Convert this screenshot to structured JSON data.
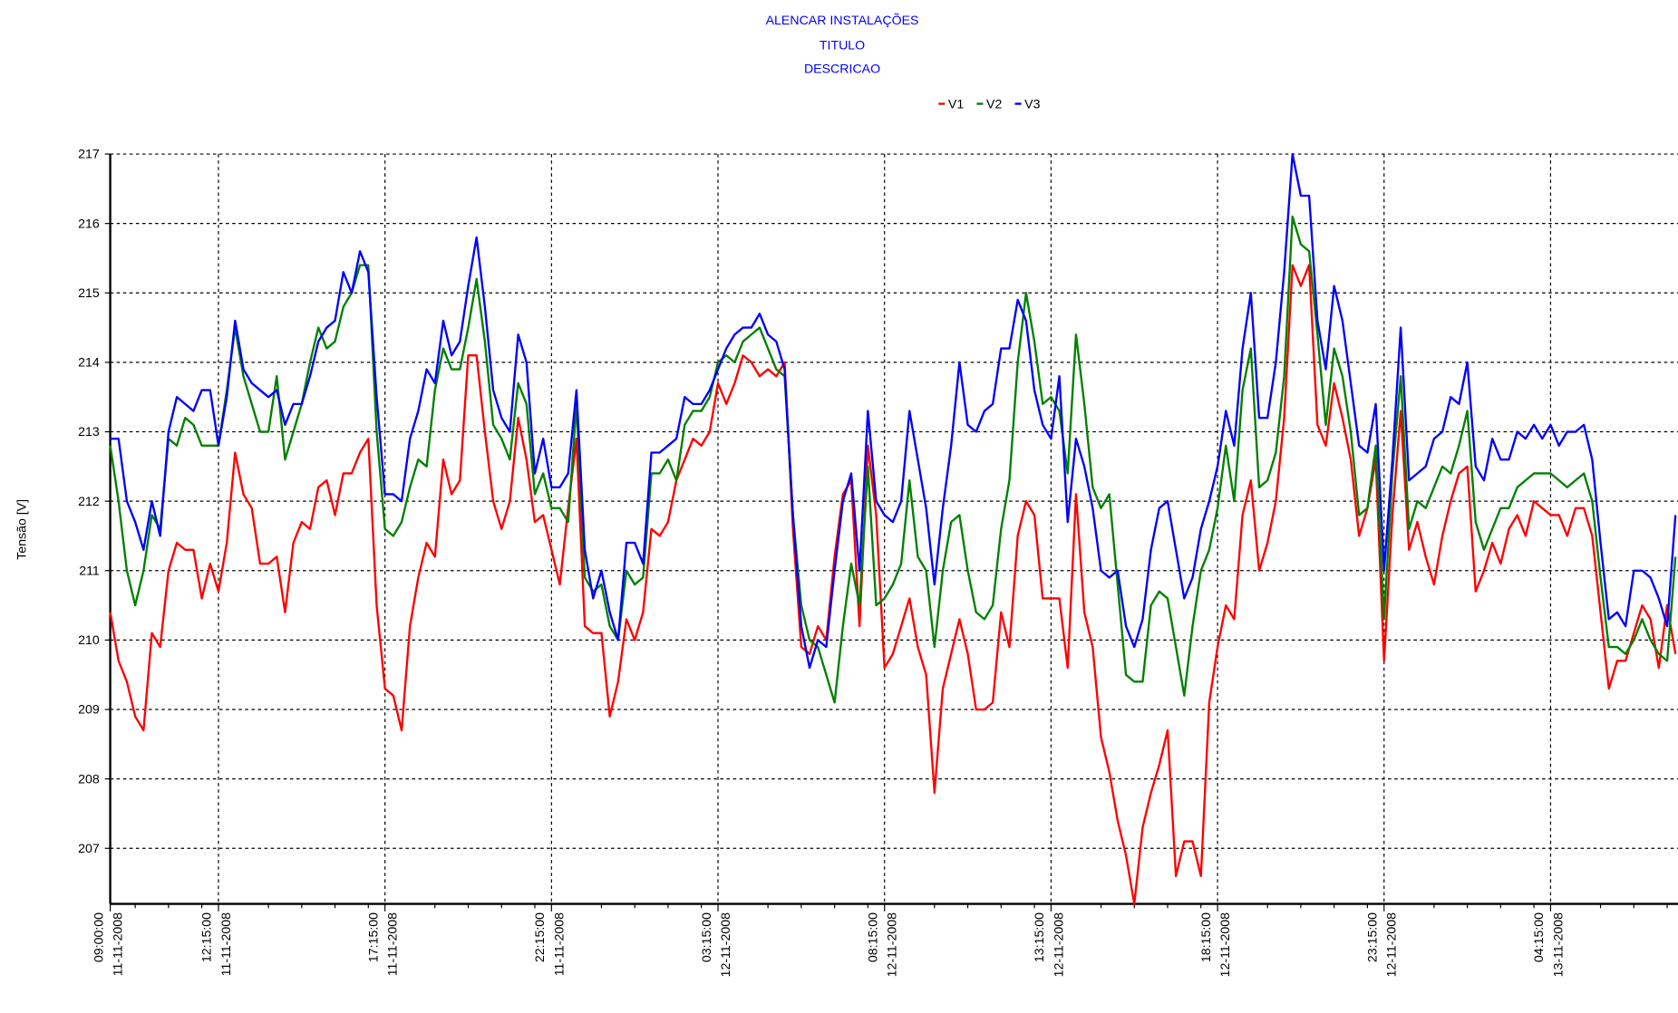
{
  "chart_data": {
    "type": "line",
    "title": "ALENCAR INSTALAÇÕES",
    "subtitle": "TITULO",
    "description": "DESCRICAO",
    "ylabel": "Tensão [V]",
    "ylim": [
      206.2,
      217
    ],
    "yticks": [
      207,
      208,
      209,
      210,
      211,
      212,
      213,
      214,
      215,
      216,
      217
    ],
    "grid": true,
    "legend": "top",
    "categories": [
      "09:00:00 11-11-2008",
      null,
      null,
      null,
      null,
      null,
      null,
      null,
      null,
      null,
      null,
      null,
      null,
      "12:15:00 11-11-2008",
      null,
      null,
      null,
      null,
      null,
      null,
      null,
      null,
      null,
      null,
      null,
      null,
      null,
      null,
      null,
      null,
      null,
      null,
      null,
      "17:15:00 11-11-2008",
      null,
      null,
      null,
      null,
      null,
      null,
      null,
      null,
      null,
      null,
      null,
      null,
      null,
      null,
      null,
      null,
      null,
      null,
      null,
      "22:15:00 11-11-2008",
      null,
      null,
      null,
      null,
      null,
      null,
      null,
      null,
      null,
      null,
      null,
      null,
      null,
      null,
      null,
      null,
      null,
      null,
      null,
      "03:15:00 12-11-2008",
      null,
      null,
      null,
      null,
      null,
      null,
      null,
      null,
      null,
      null,
      null,
      null,
      null,
      null,
      null,
      null,
      null,
      null,
      null,
      "08:15:00 12-11-2008",
      null,
      null,
      null,
      null,
      null,
      null,
      null,
      null,
      null,
      null,
      null,
      null,
      null,
      null,
      null,
      null,
      null,
      null,
      null,
      "13:15:00 12-11-2008",
      null,
      null,
      null,
      null,
      null,
      null,
      null,
      null,
      null,
      null,
      null,
      null,
      null,
      null,
      null,
      null,
      null,
      null,
      null,
      "18:15:00 12-11-2008",
      null,
      null,
      null,
      null,
      null,
      null,
      null,
      null,
      null,
      null,
      null,
      null,
      null,
      null,
      null,
      null,
      null,
      null,
      null,
      "23:15:00 12-11-2008",
      null,
      null,
      null,
      null,
      null,
      null,
      null,
      null,
      null,
      null,
      null,
      null,
      null,
      null,
      null,
      null,
      null,
      null,
      null,
      "04:15:00 13-11-2008",
      null,
      null,
      null,
      null,
      null,
      null,
      null,
      null,
      null,
      null,
      null,
      null,
      null,
      null,
      null
    ],
    "series": [
      {
        "name": "V1",
        "color": "#ff0000",
        "values": [
          210.4,
          209.7,
          209.4,
          208.9,
          208.7,
          210.1,
          209.9,
          211.0,
          211.4,
          211.3,
          211.3,
          210.6,
          211.1,
          210.7,
          211.4,
          212.7,
          212.1,
          211.9,
          211.1,
          211.1,
          211.2,
          210.4,
          211.4,
          211.7,
          211.6,
          212.2,
          212.3,
          211.8,
          212.4,
          212.4,
          212.7,
          212.9,
          210.5,
          209.3,
          209.2,
          208.7,
          210.2,
          210.9,
          211.4,
          211.2,
          212.6,
          212.1,
          212.3,
          214.1,
          214.1,
          213.0,
          212.0,
          211.6,
          212.0,
          213.2,
          212.6,
          211.7,
          211.8,
          211.3,
          210.8,
          211.9,
          212.9,
          210.2,
          210.1,
          210.1,
          208.9,
          209.4,
          210.3,
          210.0,
          210.4,
          211.6,
          211.5,
          211.7,
          212.3,
          212.6,
          212.9,
          212.8,
          213.0,
          213.7,
          213.4,
          213.7,
          214.1,
          214.0,
          213.8,
          213.9,
          213.8,
          214.0,
          211.6,
          209.9,
          209.8,
          210.2,
          210.0,
          211.2,
          212.1,
          212.3,
          210.2,
          212.8,
          211.8,
          209.6,
          209.8,
          210.2,
          210.6,
          209.9,
          209.5,
          207.8,
          209.3,
          209.8,
          210.3,
          209.8,
          209.0,
          209.0,
          209.1,
          210.4,
          209.9,
          211.5,
          212.0,
          211.8,
          210.6,
          210.6,
          210.6,
          209.6,
          212.1,
          210.4,
          209.9,
          208.6,
          208.1,
          207.4,
          206.9,
          206.2,
          207.3,
          207.8,
          208.2,
          208.7,
          206.6,
          207.1,
          207.1,
          206.6,
          209.1,
          209.9,
          210.5,
          210.3,
          211.8,
          212.3,
          211.0,
          211.4,
          212.0,
          213.2,
          215.4,
          215.1,
          215.4,
          213.1,
          212.8,
          213.7,
          213.2,
          212.6,
          211.5,
          211.9,
          212.6,
          209.7,
          211.8,
          213.3,
          211.3,
          211.7,
          211.2,
          210.8,
          211.5,
          212.0,
          212.4,
          212.5,
          210.7,
          211.0,
          211.4,
          211.1,
          211.6,
          211.8,
          211.5,
          212.0,
          211.9,
          211.8,
          211.8,
          211.5,
          211.9,
          211.9,
          211.5,
          210.4,
          209.3,
          209.7,
          209.7,
          210.1,
          210.5,
          210.3,
          209.6,
          210.5,
          209.8
        ]
      },
      {
        "name": "V2",
        "color": "#008000",
        "values": [
          212.8,
          212.0,
          211.0,
          210.5,
          211.0,
          211.8,
          211.6,
          212.9,
          212.8,
          213.2,
          213.1,
          212.8,
          212.8,
          212.8,
          213.6,
          214.5,
          213.8,
          213.4,
          213.0,
          213.0,
          213.8,
          212.6,
          213.0,
          213.4,
          214.0,
          214.5,
          214.2,
          214.3,
          214.8,
          215.0,
          215.4,
          215.4,
          213.0,
          211.6,
          211.5,
          211.7,
          212.2,
          212.6,
          212.5,
          213.6,
          214.2,
          213.9,
          213.9,
          214.5,
          215.2,
          214.3,
          213.1,
          212.9,
          212.6,
          213.7,
          213.4,
          212.1,
          212.4,
          211.9,
          211.9,
          211.7,
          213.4,
          210.9,
          210.7,
          210.8,
          210.2,
          210.0,
          211.0,
          210.8,
          210.9,
          212.4,
          212.4,
          212.6,
          212.3,
          213.1,
          213.3,
          213.3,
          213.5,
          214.0,
          214.1,
          214.0,
          214.3,
          214.4,
          214.5,
          214.2,
          213.9,
          213.8,
          211.8,
          210.5,
          210.0,
          209.9,
          209.5,
          209.1,
          210.2,
          211.1,
          210.5,
          212.5,
          210.5,
          210.6,
          210.8,
          211.1,
          212.3,
          211.2,
          211.0,
          209.9,
          211.0,
          211.7,
          211.8,
          211.0,
          210.4,
          210.3,
          210.5,
          211.6,
          212.3,
          214.0,
          215.0,
          214.3,
          213.4,
          213.5,
          213.3,
          212.4,
          214.4,
          213.4,
          212.2,
          211.9,
          212.1,
          210.8,
          209.5,
          209.4,
          209.4,
          210.5,
          210.7,
          210.6,
          209.9,
          209.2,
          210.2,
          211.0,
          211.3,
          211.9,
          212.8,
          212.0,
          213.6,
          214.2,
          212.2,
          212.3,
          212.7,
          213.8,
          216.1,
          215.7,
          215.6,
          214.4,
          213.1,
          214.2,
          213.8,
          213.0,
          211.8,
          211.9,
          212.8,
          210.3,
          212.4,
          213.8,
          211.6,
          212.0,
          211.9,
          212.2,
          212.5,
          212.4,
          212.8,
          213.3,
          211.7,
          211.3,
          211.6,
          211.9,
          211.9,
          212.2,
          212.3,
          212.4,
          212.4,
          212.4,
          212.3,
          212.2,
          212.3,
          212.4,
          212.0,
          210.9,
          209.9,
          209.9,
          209.8,
          210.0,
          210.3,
          210.0,
          209.8,
          209.7,
          211.2
        ]
      },
      {
        "name": "V3",
        "color": "#0000ff",
        "values": [
          212.9,
          212.9,
          212.0,
          211.7,
          211.3,
          212.0,
          211.5,
          213.0,
          213.5,
          213.4,
          213.3,
          213.6,
          213.6,
          212.8,
          213.5,
          214.6,
          213.9,
          213.7,
          213.6,
          213.5,
          213.6,
          213.1,
          213.4,
          213.4,
          213.8,
          214.3,
          214.5,
          214.6,
          215.3,
          215.0,
          215.6,
          215.3,
          213.5,
          212.1,
          212.1,
          212.0,
          212.9,
          213.3,
          213.9,
          213.7,
          214.6,
          214.1,
          214.3,
          215.1,
          215.8,
          214.8,
          213.6,
          213.2,
          213.0,
          214.4,
          214.0,
          212.4,
          212.9,
          212.2,
          212.2,
          212.4,
          213.6,
          211.3,
          210.6,
          211.0,
          210.4,
          210.0,
          211.4,
          211.4,
          211.1,
          212.7,
          212.7,
          212.8,
          212.9,
          213.5,
          213.4,
          213.4,
          213.6,
          213.9,
          214.2,
          214.4,
          214.5,
          214.5,
          214.7,
          214.4,
          214.3,
          213.9,
          211.8,
          210.2,
          209.6,
          210.0,
          209.9,
          211.0,
          212.0,
          212.4,
          211.0,
          213.3,
          212.0,
          211.8,
          211.7,
          212.0,
          213.3,
          212.6,
          211.9,
          210.8,
          211.9,
          212.8,
          214.0,
          213.1,
          213.0,
          213.3,
          213.4,
          214.2,
          214.2,
          214.9,
          214.6,
          213.6,
          213.1,
          212.9,
          213.8,
          211.7,
          212.9,
          212.5,
          211.9,
          211.0,
          210.9,
          211.0,
          210.2,
          209.9,
          210.3,
          211.3,
          211.9,
          212.0,
          211.3,
          210.6,
          210.9,
          211.6,
          212.0,
          212.5,
          213.3,
          212.8,
          214.2,
          215.0,
          213.2,
          213.2,
          214.0,
          215.3,
          217.0,
          216.4,
          216.4,
          214.6,
          213.9,
          215.1,
          214.6,
          213.7,
          212.8,
          212.7,
          213.4,
          211.0,
          212.6,
          214.5,
          212.3,
          212.4,
          212.5,
          212.9,
          213.0,
          213.5,
          213.4,
          214.0,
          212.5,
          212.3,
          212.9,
          212.6,
          212.6,
          213.0,
          212.9,
          213.1,
          212.9,
          213.1,
          212.8,
          213.0,
          213.0,
          213.1,
          212.6,
          211.4,
          210.3,
          210.4,
          210.2,
          211.0,
          211.0,
          210.9,
          210.6,
          210.2,
          211.8
        ]
      }
    ]
  }
}
